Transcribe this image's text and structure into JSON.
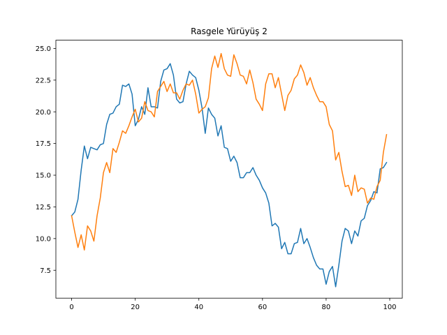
{
  "chart_data": {
    "type": "line",
    "title": "Rasgele Yürüyüş 2",
    "xlabel": "",
    "ylabel": "",
    "xlim": [
      -4.95,
      103.95
    ],
    "ylim": [
      5.3,
      25.65
    ],
    "x_ticks": [
      0,
      20,
      40,
      60,
      80,
      100
    ],
    "x_tick_labels": [
      "0",
      "20",
      "40",
      "60",
      "80",
      "100"
    ],
    "y_ticks": [
      7.5,
      10.0,
      12.5,
      15.0,
      17.5,
      20.0,
      22.5,
      25.0
    ],
    "y_tick_labels": [
      "7.5",
      "10.0",
      "12.5",
      "15.0",
      "17.5",
      "20.0",
      "22.5",
      "25.0"
    ],
    "grid": false,
    "legend": "none",
    "x": [
      0,
      1,
      2,
      3,
      4,
      5,
      6,
      7,
      8,
      9,
      10,
      11,
      12,
      13,
      14,
      15,
      16,
      17,
      18,
      19,
      20,
      21,
      22,
      23,
      24,
      25,
      26,
      27,
      28,
      29,
      30,
      31,
      32,
      33,
      34,
      35,
      36,
      37,
      38,
      39,
      40,
      41,
      42,
      43,
      44,
      45,
      46,
      47,
      48,
      49,
      50,
      51,
      52,
      53,
      54,
      55,
      56,
      57,
      58,
      59,
      60,
      61,
      62,
      63,
      64,
      65,
      66,
      67,
      68,
      69,
      70,
      71,
      72,
      73,
      74,
      75,
      76,
      77,
      78,
      79,
      80,
      81,
      82,
      83,
      84,
      85,
      86,
      87,
      88,
      89,
      90,
      91,
      92,
      93,
      94,
      95,
      96,
      97,
      98,
      99
    ],
    "series": [
      {
        "color": "#1f77b4",
        "values": [
          11.8,
          12.1,
          13.1,
          15.4,
          17.3,
          16.3,
          17.2,
          17.1,
          17.0,
          17.4,
          17.5,
          19.0,
          19.8,
          19.9,
          20.4,
          20.6,
          22.1,
          22.0,
          22.2,
          21.4,
          18.9,
          19.4,
          20.4,
          19.8,
          21.9,
          20.4,
          20.4,
          20.3,
          22.4,
          23.3,
          23.4,
          23.8,
          22.9,
          21.0,
          20.7,
          20.8,
          22.2,
          23.2,
          22.9,
          22.7,
          21.7,
          20.3,
          18.3,
          20.3,
          19.8,
          19.5,
          18.1,
          18.9,
          17.2,
          17.1,
          16.1,
          16.5,
          16.0,
          14.8,
          14.8,
          15.2,
          15.2,
          15.6,
          15.0,
          14.6,
          14.0,
          13.6,
          12.8,
          11.0,
          11.2,
          10.9,
          9.2,
          9.7,
          8.8,
          8.8,
          9.6,
          9.7,
          10.8,
          9.6,
          10.0,
          9.3,
          8.5,
          7.9,
          7.6,
          7.6,
          6.4,
          7.4,
          7.8,
          6.2,
          7.9,
          9.8,
          10.8,
          10.6,
          9.6,
          10.6,
          10.2,
          11.4,
          11.6,
          12.6,
          13.0,
          13.7,
          13.6,
          15.5,
          15.6,
          16.0
        ]
      },
      {
        "color": "#ff7f0e",
        "values": [
          11.8,
          10.5,
          9.3,
          10.3,
          9.1,
          11.0,
          10.6,
          9.8,
          11.8,
          13.2,
          15.2,
          16.0,
          15.2,
          17.1,
          16.8,
          17.6,
          18.5,
          18.3,
          18.9,
          19.6,
          20.2,
          19.2,
          19.5,
          20.8,
          20.1,
          20.0,
          19.6,
          21.6,
          22.0,
          22.4,
          21.6,
          22.2,
          21.5,
          21.5,
          21.0,
          21.7,
          22.2,
          22.1,
          22.5,
          21.4,
          19.9,
          20.2,
          20.4,
          21.1,
          23.4,
          24.4,
          23.5,
          24.6,
          23.4,
          22.9,
          22.8,
          24.5,
          23.8,
          22.9,
          22.8,
          22.2,
          23.3,
          22.3,
          21.0,
          20.6,
          20.1,
          22.2,
          23.0,
          23.0,
          21.9,
          22.7,
          21.4,
          20.1,
          21.3,
          21.7,
          22.6,
          22.9,
          23.7,
          23.1,
          22.1,
          22.7,
          21.9,
          21.3,
          20.8,
          20.8,
          20.4,
          19.0,
          18.5,
          16.2,
          16.8,
          15.3,
          14.1,
          14.2,
          13.4,
          15.0,
          13.7,
          14.0,
          13.9,
          12.8,
          13.2,
          13.1,
          14.1,
          14.6,
          16.8,
          18.2
        ]
      }
    ]
  }
}
